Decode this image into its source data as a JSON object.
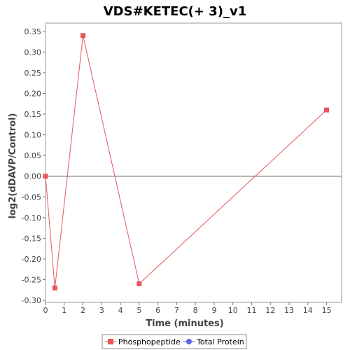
{
  "chart_data": {
    "type": "line",
    "title": "VDS#KETEC(+ 3)_v1",
    "xlabel": "Time (minutes)",
    "ylabel": "log2(dDAVP/Control)",
    "xlim": [
      0,
      15.8
    ],
    "ylim": [
      -0.305,
      0.37
    ],
    "xticks": [
      0,
      1,
      2,
      3,
      4,
      5,
      6,
      7,
      8,
      9,
      10,
      11,
      12,
      13,
      14,
      15
    ],
    "yticks": [
      -0.3,
      -0.25,
      -0.2,
      -0.15,
      -0.1,
      -0.05,
      0.0,
      0.05,
      0.1,
      0.15,
      0.2,
      0.25,
      0.3,
      0.35
    ],
    "ytick_labels": [
      "-0.30",
      "-0.25",
      "-0.20",
      "-0.15",
      "-0.10",
      "-0.05",
      "0.00",
      "0.05",
      "0.10",
      "0.15",
      "0.20",
      "0.25",
      "0.30",
      "0.35"
    ],
    "grid": false,
    "zero_line": true,
    "legend_position": "bottom",
    "series": [
      {
        "name": "Phosphopeptide",
        "color": "#e8555a",
        "marker": "square",
        "points": [
          {
            "x": 0,
            "y": 0.0
          },
          {
            "x": 0.5,
            "y": -0.27
          },
          {
            "x": 2,
            "y": 0.34
          },
          {
            "x": 5,
            "y": -0.26
          },
          {
            "x": 15,
            "y": 0.16
          }
        ]
      },
      {
        "name": "Total Protein",
        "color": "#5a64e8",
        "marker": "circle",
        "points": []
      }
    ]
  }
}
